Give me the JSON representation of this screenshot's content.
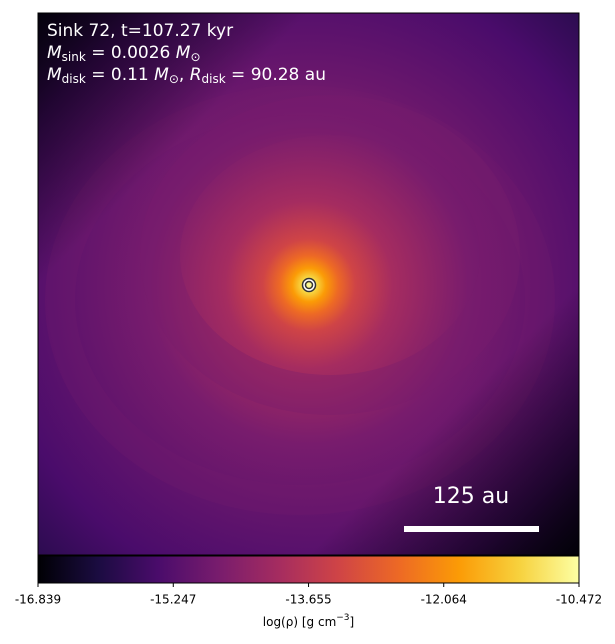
{
  "chart_data": {
    "type": "density-map",
    "annotation_lines": [
      {
        "text": "Sink 72, t=107.27 kyr"
      },
      {
        "parts": [
          "M",
          "sink",
          " = 0.0026 ",
          "M",
          "⊙"
        ]
      },
      {
        "parts": [
          "M",
          "disk",
          " = 0.11 ",
          "M",
          "⊙",
          ", ",
          "R",
          "disk",
          " = 90.28 au"
        ]
      }
    ],
    "scale_bar_label": "125 au",
    "colorbar": {
      "label_parts": [
        "log(ρ) [g cm",
        "−3",
        "]"
      ],
      "clim": [
        -16.839,
        -10.472
      ],
      "ticks": [
        -16.839,
        -15.247,
        -13.655,
        -12.064,
        -10.472
      ],
      "colormap": [
        "#000004",
        "#1b0c41",
        "#4a0c6b",
        "#781c6d",
        "#a52c60",
        "#cf4446",
        "#ed6925",
        "#fb9b06",
        "#f7d13d",
        "#fcffa4"
      ]
    }
  }
}
